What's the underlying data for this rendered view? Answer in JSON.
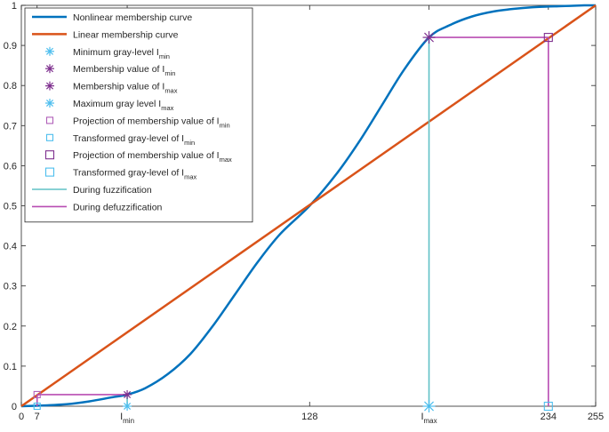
{
  "chart_data": {
    "type": "line",
    "title": "",
    "xlabel": "",
    "ylabel": "",
    "xlim": [
      0,
      255
    ],
    "ylim": [
      0,
      1
    ],
    "x_ticks": [
      {
        "value": 0,
        "label": "0"
      },
      {
        "value": 7,
        "label": "7"
      },
      {
        "value": 47,
        "label": "I",
        "sub": "min"
      },
      {
        "value": 128,
        "label": "128"
      },
      {
        "value": 181,
        "label": "I",
        "sub": "max"
      },
      {
        "value": 234,
        "label": "234"
      },
      {
        "value": 255,
        "label": "255"
      }
    ],
    "y_ticks": [
      0,
      0.1,
      0.2,
      0.3,
      0.4,
      0.5,
      0.6,
      0.7,
      0.8,
      0.9,
      1
    ],
    "y_tick_labels": [
      "0",
      "0.1",
      "0.2",
      "0.3",
      "0.4",
      "0.5",
      "0.6",
      "0.7",
      "0.8",
      "0.9",
      "1"
    ],
    "grid": false,
    "legend_position": "top-left",
    "series": [
      {
        "name": "Nonlinear membership curve",
        "style": "line",
        "color": "#0072BD",
        "width": 2.5,
        "x": [
          0,
          10,
          20,
          30,
          40,
          47,
          55,
          65,
          75,
          85,
          95,
          105,
          115,
          128,
          140,
          150,
          160,
          170,
          181,
          190,
          200,
          210,
          220,
          230,
          240,
          250,
          255
        ],
        "y": [
          0,
          0.002,
          0.005,
          0.012,
          0.022,
          0.029,
          0.045,
          0.08,
          0.13,
          0.2,
          0.28,
          0.36,
          0.43,
          0.5,
          0.58,
          0.66,
          0.75,
          0.84,
          0.92,
          0.95,
          0.972,
          0.985,
          0.992,
          0.996,
          0.998,
          1.0,
          1.0
        ]
      },
      {
        "name": "Linear membership curve",
        "style": "line",
        "color": "#D95319",
        "width": 2.5,
        "x": [
          0,
          255
        ],
        "y": [
          0,
          1
        ]
      },
      {
        "name": "Minimum gray-level I",
        "name_sub": "min",
        "style": "marker",
        "marker": "asterisk",
        "color": "#4DBEEE",
        "size": 5,
        "x": [
          47
        ],
        "y": [
          0
        ]
      },
      {
        "name": "Membership value of I",
        "name_sub": "min",
        "style": "marker",
        "marker": "asterisk",
        "color": "#7E2F8E",
        "size": 5,
        "x": [
          47
        ],
        "y": [
          0.029
        ]
      },
      {
        "name": "Membership value of I",
        "name_sub": "max",
        "style": "marker",
        "marker": "asterisk",
        "color": "#7E2F8E",
        "size": 7,
        "x": [
          181
        ],
        "y": [
          0.92
        ]
      },
      {
        "name": "Maximum gray level I",
        "name_sub": "max",
        "style": "marker",
        "marker": "asterisk",
        "color": "#4DBEEE",
        "size": 7,
        "x": [
          181
        ],
        "y": [
          0
        ]
      },
      {
        "name": "Projection of membership value of I",
        "name_sub": "min",
        "style": "marker",
        "marker": "square",
        "color": "#B05FB8",
        "size": 3.5,
        "x": [
          7
        ],
        "y": [
          0.029
        ]
      },
      {
        "name": "Transformed gray-level of I",
        "name_sub": "min",
        "style": "marker",
        "marker": "square",
        "color": "#4DBEEE",
        "size": 3.5,
        "x": [
          7
        ],
        "y": [
          0
        ]
      },
      {
        "name": "Projection of membership value of I",
        "name_sub": "max",
        "style": "marker",
        "marker": "square",
        "color": "#7E2F8E",
        "size": 4.5,
        "x": [
          234
        ],
        "y": [
          0.92
        ]
      },
      {
        "name": "Transformed gray-level of I",
        "name_sub": "max",
        "style": "marker",
        "marker": "square",
        "color": "#4DBEEE",
        "size": 4.5,
        "x": [
          234
        ],
        "y": [
          0
        ]
      },
      {
        "name": "During fuzzification",
        "style": "line",
        "color": "#61C2C6",
        "width": 1.6,
        "segments": [
          {
            "x": [
              47,
              47
            ],
            "y": [
              0,
              0.029
            ]
          },
          {
            "x": [
              181,
              181
            ],
            "y": [
              0,
              0.92
            ]
          }
        ]
      },
      {
        "name": "During defuzzification",
        "style": "line",
        "color": "#B84DB3",
        "width": 1.6,
        "segments": [
          {
            "x": [
              47,
              7
            ],
            "y": [
              0.029,
              0.029
            ]
          },
          {
            "x": [
              7,
              7
            ],
            "y": [
              0.029,
              0
            ]
          },
          {
            "x": [
              181,
              234
            ],
            "y": [
              0.92,
              0.92
            ]
          },
          {
            "x": [
              234,
              234
            ],
            "y": [
              0.92,
              0
            ]
          }
        ]
      }
    ]
  }
}
